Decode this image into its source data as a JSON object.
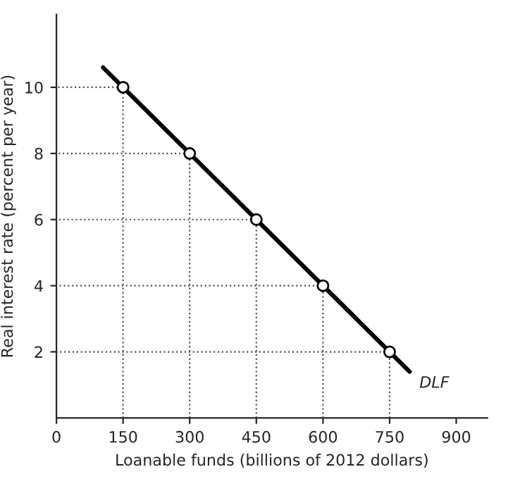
{
  "chart_data": {
    "type": "line",
    "xlabel": "Loanable funds (billions of 2012 dollars)",
    "ylabel": "Real interest rate (percent per year)",
    "xlim": [
      0,
      970
    ],
    "ylim": [
      0,
      12.2
    ],
    "xticks": [
      0,
      150,
      300,
      450,
      600,
      750,
      900
    ],
    "yticks": [
      2,
      4,
      6,
      8,
      10
    ],
    "series": [
      {
        "color": "#000000",
        "x": [
          105,
          795
        ],
        "values": [
          10.6,
          1.4
        ]
      },
      {
        "color": "#555555",
        "line_style": "dotted",
        "x": [
          150,
          150,
          0
        ],
        "values": [
          0,
          10,
          10
        ]
      },
      {
        "color": "#555555",
        "line_style": "dotted",
        "x": [
          300,
          300,
          0
        ],
        "values": [
          0,
          8,
          8
        ]
      },
      {
        "color": "#555555",
        "line_style": "dotted",
        "x": [
          450,
          450,
          0
        ],
        "values": [
          0,
          6,
          6
        ]
      },
      {
        "color": "#555555",
        "line_style": "dotted",
        "x": [
          600,
          600,
          0
        ],
        "values": [
          0,
          4,
          4
        ]
      },
      {
        "color": "#555555",
        "line_style": "dotted",
        "x": [
          750,
          750,
          0
        ],
        "values": [
          0,
          2,
          2
        ]
      },
      {
        "type": "scatter",
        "color": "#000000",
        "marker": "circle",
        "x": [
          150,
          300,
          450,
          600,
          750
        ],
        "values": [
          10,
          8,
          6,
          4,
          2
        ]
      }
    ],
    "annotations": [
      "DLF"
    ]
  }
}
